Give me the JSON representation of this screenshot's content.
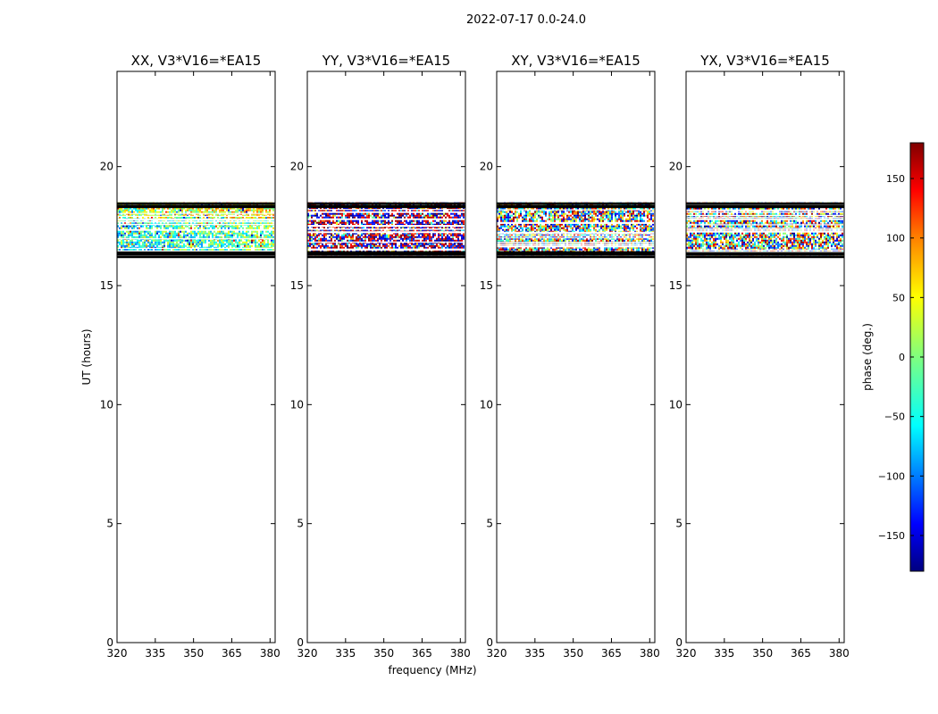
{
  "figure": {
    "suptitle": "2022-07-17 0.0-24.0"
  },
  "chart_data": [
    {
      "type": "heatmap",
      "title": "XX, V3*V16=*EA15",
      "xlabel": "",
      "ylabel": "UT (hours)",
      "xlim": [
        320,
        382
      ],
      "ylim": [
        0,
        24
      ],
      "xticks": [
        320,
        335,
        350,
        365,
        380
      ],
      "yticks": [
        0,
        5,
        10,
        15,
        20
      ],
      "data_ut_range": [
        16.2,
        18.5
      ],
      "dominant_phase_deg": -40,
      "flagged_rows_ut": [
        16.2,
        16.3,
        16.35,
        16.4,
        18.3,
        18.35,
        18.45
      ]
    },
    {
      "type": "heatmap",
      "title": "YY, V3*V16=*EA15",
      "xlabel": "frequency (MHz)",
      "ylabel": "",
      "xlim": [
        320,
        382
      ],
      "ylim": [
        0,
        24
      ],
      "xticks": [
        320,
        335,
        350,
        365,
        380
      ],
      "yticks": [
        0,
        5,
        10,
        15,
        20
      ],
      "data_ut_range": [
        16.2,
        18.5
      ],
      "dominant_phase_deg": 180,
      "flagged_rows_ut": [
        16.2,
        16.3,
        16.35,
        16.4,
        18.3,
        18.35,
        18.45
      ]
    },
    {
      "type": "heatmap",
      "title": "XY, V3*V16=*EA15",
      "xlabel": "",
      "ylabel": "",
      "xlim": [
        320,
        382
      ],
      "ylim": [
        0,
        24
      ],
      "xticks": [
        320,
        335,
        350,
        365,
        380
      ],
      "yticks": [
        0,
        5,
        10,
        15,
        20
      ],
      "data_ut_range": [
        16.2,
        18.5
      ],
      "dominant_phase_deg": null,
      "flagged_rows_ut": [
        16.2,
        16.3,
        16.35,
        16.4,
        18.3,
        18.35,
        18.45
      ]
    },
    {
      "type": "heatmap",
      "title": "YX, V3*V16=*EA15",
      "xlabel": "",
      "ylabel": "",
      "xlim": [
        320,
        382
      ],
      "ylim": [
        0,
        24
      ],
      "xticks": [
        320,
        335,
        350,
        365,
        380
      ],
      "yticks": [
        0,
        5,
        10,
        15,
        20
      ],
      "data_ut_range": [
        16.2,
        18.5
      ],
      "dominant_phase_deg": null,
      "flagged_rows_ut": [
        16.2,
        16.3,
        16.35,
        16.4,
        18.3,
        18.35,
        18.45
      ]
    }
  ],
  "colorbar": {
    "label": "phase (deg.)",
    "range": [
      -180,
      180
    ],
    "ticks": [
      "150",
      "100",
      "50",
      "0",
      "−50",
      "−100",
      "−150"
    ],
    "tick_values": [
      150,
      100,
      50,
      0,
      -50,
      -100,
      -150
    ],
    "colormap": "jet",
    "colors": [
      "#00007f",
      "#0000ff",
      "#007fff",
      "#00ffff",
      "#7fff7f",
      "#ffff00",
      "#ff7f00",
      "#ff0000",
      "#7f0000"
    ]
  }
}
